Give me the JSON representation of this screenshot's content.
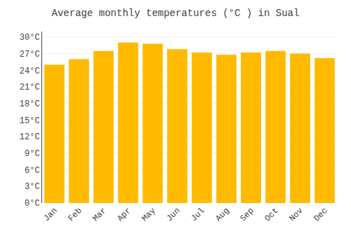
{
  "chart_data": {
    "type": "bar",
    "title": "Average monthly temperatures (°C ) in Sual",
    "categories": [
      "Jan",
      "Feb",
      "Mar",
      "Apr",
      "May",
      "Jun",
      "Jul",
      "Aug",
      "Sep",
      "Oct",
      "Nov",
      "Dec"
    ],
    "values": [
      25.0,
      26.0,
      27.5,
      29.0,
      28.8,
      27.8,
      27.2,
      26.8,
      27.2,
      27.5,
      27.0,
      26.2
    ],
    "color": "#FFBA00",
    "ylim": [
      0,
      31
    ],
    "yticks": [
      {
        "value": 0,
        "label": "0°C"
      },
      {
        "value": 3,
        "label": "3°C"
      },
      {
        "value": 6,
        "label": "6°C"
      },
      {
        "value": 9,
        "label": "9°C"
      },
      {
        "value": 12,
        "label": "12°C"
      },
      {
        "value": 15,
        "label": "15°C"
      },
      {
        "value": 18,
        "label": "18°C"
      },
      {
        "value": 21,
        "label": "21°C"
      },
      {
        "value": 24,
        "label": "24°C"
      },
      {
        "value": 27,
        "label": "27°C"
      },
      {
        "value": 30,
        "label": "30°C"
      }
    ],
    "grid": true
  }
}
